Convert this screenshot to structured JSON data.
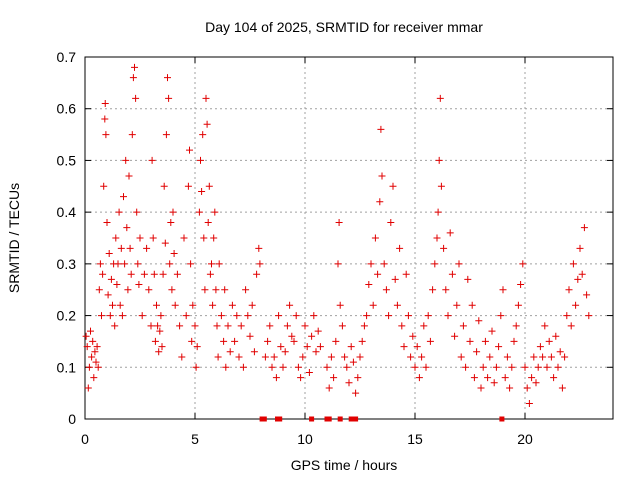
{
  "chart_data": {
    "type": "scatter",
    "title": "Day 104 of 2025, SRMTID for receiver mmar",
    "xlabel": "GPS time / hours",
    "ylabel": "SRMTID / TECUs",
    "xlim": [
      0,
      24
    ],
    "ylim": [
      0,
      0.7
    ],
    "x_ticks": [
      0,
      5,
      10,
      15,
      20
    ],
    "x_tick_labels": [
      "0",
      "5",
      "10",
      "15",
      "20"
    ],
    "y_ticks": [
      0,
      0.1,
      0.2,
      0.3,
      0.4,
      0.5,
      0.6,
      0.7
    ],
    "y_tick_labels": [
      "0",
      "0.1",
      "0.2",
      "0.3",
      "0.4",
      "0.5",
      "0.6",
      "0.7"
    ],
    "grid": true,
    "marker": "+",
    "marker_color": "#e00000",
    "series": [
      {
        "name": "SRMTID",
        "points": [
          [
            0.05,
            0.16
          ],
          [
            0.1,
            0.14
          ],
          [
            0.15,
            0.06
          ],
          [
            0.2,
            0.1
          ],
          [
            0.25,
            0.17
          ],
          [
            0.3,
            0.12
          ],
          [
            0.35,
            0.15
          ],
          [
            0.4,
            0.08
          ],
          [
            0.45,
            0.13
          ],
          [
            0.5,
            0.11
          ],
          [
            0.55,
            0.14
          ],
          [
            0.6,
            0.1
          ],
          [
            0.65,
            0.25
          ],
          [
            0.7,
            0.3
          ],
          [
            0.75,
            0.2
          ],
          [
            0.8,
            0.28
          ],
          [
            0.85,
            0.45
          ],
          [
            0.9,
            0.58
          ],
          [
            0.92,
            0.61
          ],
          [
            0.95,
            0.55
          ],
          [
            1.0,
            0.38
          ],
          [
            1.05,
            0.24
          ],
          [
            1.1,
            0.32
          ],
          [
            1.15,
            0.2
          ],
          [
            1.2,
            0.27
          ],
          [
            1.25,
            0.22
          ],
          [
            1.3,
            0.3
          ],
          [
            1.35,
            0.18
          ],
          [
            1.4,
            0.35
          ],
          [
            1.45,
            0.26
          ],
          [
            1.5,
            0.3
          ],
          [
            1.55,
            0.4
          ],
          [
            1.6,
            0.22
          ],
          [
            1.65,
            0.33
          ],
          [
            1.7,
            0.2
          ],
          [
            1.75,
            0.43
          ],
          [
            1.8,
            0.3
          ],
          [
            1.85,
            0.5
          ],
          [
            1.9,
            0.37
          ],
          [
            1.95,
            0.25
          ],
          [
            2.0,
            0.47
          ],
          [
            2.05,
            0.33
          ],
          [
            2.1,
            0.28
          ],
          [
            2.15,
            0.55
          ],
          [
            2.2,
            0.66
          ],
          [
            2.25,
            0.68
          ],
          [
            2.3,
            0.62
          ],
          [
            2.35,
            0.4
          ],
          [
            2.4,
            0.3
          ],
          [
            2.45,
            0.26
          ],
          [
            2.5,
            0.35
          ],
          [
            2.6,
            0.2
          ],
          [
            2.7,
            0.28
          ],
          [
            2.8,
            0.33
          ],
          [
            2.9,
            0.25
          ],
          [
            3.0,
            0.18
          ],
          [
            3.05,
            0.5
          ],
          [
            3.1,
            0.35
          ],
          [
            3.15,
            0.28
          ],
          [
            3.2,
            0.15
          ],
          [
            3.25,
            0.22
          ],
          [
            3.3,
            0.18
          ],
          [
            3.35,
            0.13
          ],
          [
            3.4,
            0.17
          ],
          [
            3.45,
            0.2
          ],
          [
            3.5,
            0.14
          ],
          [
            3.55,
            0.28
          ],
          [
            3.6,
            0.45
          ],
          [
            3.65,
            0.34
          ],
          [
            3.7,
            0.55
          ],
          [
            3.75,
            0.66
          ],
          [
            3.8,
            0.62
          ],
          [
            3.85,
            0.3
          ],
          [
            3.9,
            0.38
          ],
          [
            3.95,
            0.25
          ],
          [
            4.0,
            0.4
          ],
          [
            4.05,
            0.32
          ],
          [
            4.1,
            0.22
          ],
          [
            4.2,
            0.28
          ],
          [
            4.3,
            0.18
          ],
          [
            4.4,
            0.12
          ],
          [
            4.5,
            0.35
          ],
          [
            4.6,
            0.2
          ],
          [
            4.7,
            0.45
          ],
          [
            4.75,
            0.52
          ],
          [
            4.8,
            0.3
          ],
          [
            4.85,
            0.15
          ],
          [
            4.9,
            0.22
          ],
          [
            5.0,
            0.18
          ],
          [
            5.05,
            0.1
          ],
          [
            5.1,
            0.14
          ],
          [
            5.2,
            0.4
          ],
          [
            5.25,
            0.5
          ],
          [
            5.3,
            0.44
          ],
          [
            5.35,
            0.55
          ],
          [
            5.4,
            0.35
          ],
          [
            5.45,
            0.25
          ],
          [
            5.5,
            0.62
          ],
          [
            5.55,
            0.57
          ],
          [
            5.6,
            0.38
          ],
          [
            5.65,
            0.45
          ],
          [
            5.7,
            0.28
          ],
          [
            5.75,
            0.3
          ],
          [
            5.8,
            0.22
          ],
          [
            5.85,
            0.35
          ],
          [
            5.9,
            0.4
          ],
          [
            5.95,
            0.25
          ],
          [
            6.0,
            0.18
          ],
          [
            6.05,
            0.12
          ],
          [
            6.1,
            0.3
          ],
          [
            6.2,
            0.2
          ],
          [
            6.3,
            0.15
          ],
          [
            6.35,
            0.25
          ],
          [
            6.4,
            0.1
          ],
          [
            6.5,
            0.18
          ],
          [
            6.6,
            0.13
          ],
          [
            6.7,
            0.22
          ],
          [
            6.8,
            0.15
          ],
          [
            6.9,
            0.2
          ],
          [
            7.0,
            0.12
          ],
          [
            7.1,
            0.18
          ],
          [
            7.2,
            0.1
          ],
          [
            7.3,
            0.25
          ],
          [
            7.4,
            0.2
          ],
          [
            7.5,
            0.16
          ],
          [
            7.6,
            0.22
          ],
          [
            7.7,
            0.13
          ],
          [
            7.8,
            0.28
          ],
          [
            7.9,
            0.33
          ],
          [
            7.95,
            0.3
          ],
          [
            8.2,
            0.12
          ],
          [
            8.3,
            0.15
          ],
          [
            8.4,
            0.18
          ],
          [
            8.5,
            0.1
          ],
          [
            8.6,
            0.12
          ],
          [
            8.7,
            0.08
          ],
          [
            8.8,
            0.2
          ],
          [
            8.9,
            0.14
          ],
          [
            9.0,
            0.1
          ],
          [
            9.1,
            0.13
          ],
          [
            9.2,
            0.18
          ],
          [
            9.3,
            0.22
          ],
          [
            9.4,
            0.16
          ],
          [
            9.5,
            0.15
          ],
          [
            9.6,
            0.2
          ],
          [
            9.7,
            0.1
          ],
          [
            9.8,
            0.08
          ],
          [
            9.9,
            0.12
          ],
          [
            10.0,
            0.18
          ],
          [
            10.1,
            0.14
          ],
          [
            10.2,
            0.09
          ],
          [
            10.3,
            0.16
          ],
          [
            10.4,
            0.2
          ],
          [
            10.5,
            0.13
          ],
          [
            10.6,
            0.17
          ],
          [
            10.7,
            0.14
          ],
          [
            11.0,
            0.1
          ],
          [
            11.1,
            0.06
          ],
          [
            11.2,
            0.12
          ],
          [
            11.3,
            0.08
          ],
          [
            11.4,
            0.15
          ],
          [
            11.5,
            0.3
          ],
          [
            11.55,
            0.38
          ],
          [
            11.6,
            0.22
          ],
          [
            11.7,
            0.18
          ],
          [
            11.8,
            0.12
          ],
          [
            11.9,
            0.1
          ],
          [
            12.0,
            0.07
          ],
          [
            12.1,
            0.14
          ],
          [
            12.2,
            0.11
          ],
          [
            12.3,
            0.05
          ],
          [
            12.4,
            0.08
          ],
          [
            12.5,
            0.12
          ],
          [
            12.6,
            0.15
          ],
          [
            12.7,
            0.18
          ],
          [
            12.8,
            0.2
          ],
          [
            12.9,
            0.26
          ],
          [
            13.0,
            0.3
          ],
          [
            13.1,
            0.22
          ],
          [
            13.2,
            0.35
          ],
          [
            13.3,
            0.28
          ],
          [
            13.4,
            0.42
          ],
          [
            13.45,
            0.56
          ],
          [
            13.5,
            0.47
          ],
          [
            13.6,
            0.3
          ],
          [
            13.7,
            0.25
          ],
          [
            13.8,
            0.2
          ],
          [
            13.9,
            0.38
          ],
          [
            14.0,
            0.45
          ],
          [
            14.1,
            0.27
          ],
          [
            14.2,
            0.22
          ],
          [
            14.3,
            0.33
          ],
          [
            14.4,
            0.18
          ],
          [
            14.5,
            0.14
          ],
          [
            14.6,
            0.28
          ],
          [
            14.7,
            0.2
          ],
          [
            14.8,
            0.12
          ],
          [
            14.9,
            0.16
          ],
          [
            15.0,
            0.1
          ],
          [
            15.1,
            0.14
          ],
          [
            15.2,
            0.08
          ],
          [
            15.3,
            0.12
          ],
          [
            15.4,
            0.18
          ],
          [
            15.5,
            0.1
          ],
          [
            15.6,
            0.2
          ],
          [
            15.7,
            0.15
          ],
          [
            15.8,
            0.25
          ],
          [
            15.9,
            0.3
          ],
          [
            16.0,
            0.35
          ],
          [
            16.05,
            0.4
          ],
          [
            16.1,
            0.5
          ],
          [
            16.15,
            0.62
          ],
          [
            16.2,
            0.45
          ],
          [
            16.3,
            0.33
          ],
          [
            16.4,
            0.25
          ],
          [
            16.5,
            0.2
          ],
          [
            16.6,
            0.36
          ],
          [
            16.7,
            0.28
          ],
          [
            16.8,
            0.16
          ],
          [
            16.9,
            0.22
          ],
          [
            17.0,
            0.3
          ],
          [
            17.1,
            0.12
          ],
          [
            17.2,
            0.18
          ],
          [
            17.3,
            0.1
          ],
          [
            17.4,
            0.27
          ],
          [
            17.5,
            0.15
          ],
          [
            17.6,
            0.22
          ],
          [
            17.7,
            0.08
          ],
          [
            17.8,
            0.13
          ],
          [
            17.9,
            0.19
          ],
          [
            18.0,
            0.06
          ],
          [
            18.1,
            0.1
          ],
          [
            18.2,
            0.15
          ],
          [
            18.3,
            0.08
          ],
          [
            18.4,
            0.12
          ],
          [
            18.5,
            0.17
          ],
          [
            18.6,
            0.07
          ],
          [
            18.7,
            0.1
          ],
          [
            18.8,
            0.14
          ],
          [
            18.9,
            0.2
          ],
          [
            19.0,
            0.25
          ],
          [
            19.1,
            0.08
          ],
          [
            19.2,
            0.12
          ],
          [
            19.3,
            0.06
          ],
          [
            19.4,
            0.1
          ],
          [
            19.5,
            0.15
          ],
          [
            19.6,
            0.18
          ],
          [
            19.7,
            0.22
          ],
          [
            19.8,
            0.26
          ],
          [
            19.9,
            0.3
          ],
          [
            20.0,
            0.1
          ],
          [
            20.1,
            0.06
          ],
          [
            20.2,
            0.03
          ],
          [
            20.3,
            0.08
          ],
          [
            20.4,
            0.12
          ],
          [
            20.5,
            0.07
          ],
          [
            20.6,
            0.1
          ],
          [
            20.7,
            0.14
          ],
          [
            20.8,
            0.12
          ],
          [
            20.9,
            0.18
          ],
          [
            21.0,
            0.1
          ],
          [
            21.1,
            0.15
          ],
          [
            21.2,
            0.12
          ],
          [
            21.3,
            0.08
          ],
          [
            21.4,
            0.16
          ],
          [
            21.5,
            0.1
          ],
          [
            21.6,
            0.13
          ],
          [
            21.7,
            0.06
          ],
          [
            21.8,
            0.12
          ],
          [
            21.9,
            0.2
          ],
          [
            22.0,
            0.25
          ],
          [
            22.1,
            0.18
          ],
          [
            22.2,
            0.3
          ],
          [
            22.3,
            0.22
          ],
          [
            22.4,
            0.27
          ],
          [
            22.5,
            0.33
          ],
          [
            22.6,
            0.28
          ],
          [
            22.7,
            0.37
          ],
          [
            22.8,
            0.24
          ],
          [
            22.9,
            0.2
          ]
        ]
      }
    ],
    "zero_markers_x": [
      8.05,
      8.15,
      8.75,
      8.85,
      10.3,
      11.0,
      11.1,
      11.6,
      12.1,
      12.3,
      18.95
    ]
  }
}
